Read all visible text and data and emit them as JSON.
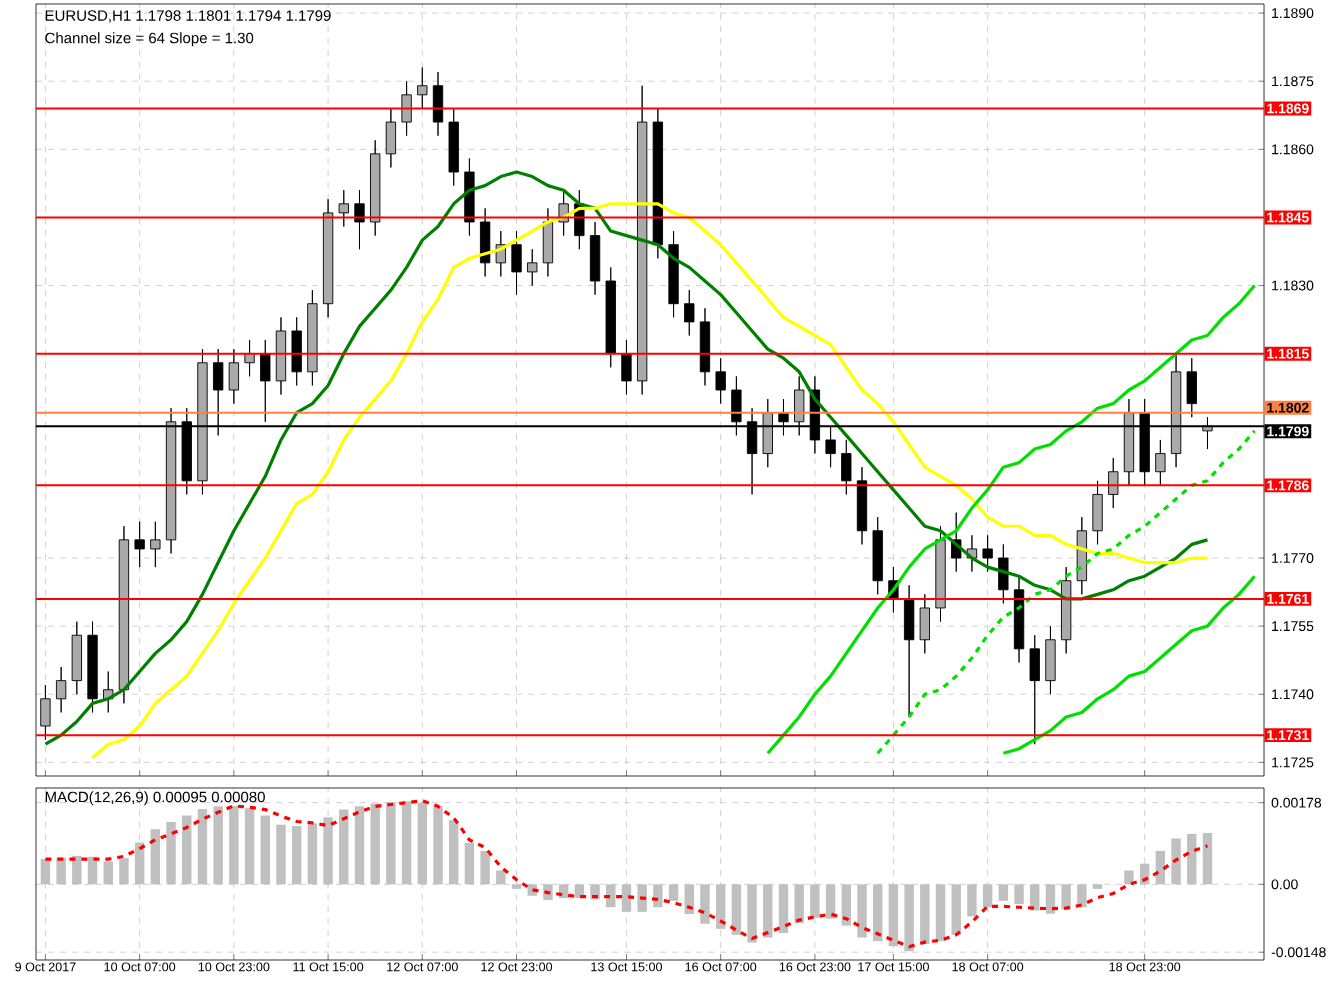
{
  "chart_data": [
    {
      "type": "candlestick",
      "title": "EURUSD,H1  1.1798 1.1801 1.1794 1.1799",
      "subtitle": "Channel size = 64 Slope = 1.30",
      "categories": [
        null,
        null,
        null,
        null,
        null,
        null,
        null,
        null,
        null,
        null,
        null,
        null,
        null,
        null,
        null,
        null,
        null,
        null,
        null,
        null,
        null,
        null,
        null,
        null,
        null,
        null,
        null,
        null,
        null,
        null,
        null,
        null,
        null,
        null,
        null,
        null,
        null,
        null,
        null,
        null,
        null,
        null,
        null,
        null,
        null,
        null,
        null,
        null,
        null,
        null,
        null,
        null,
        null,
        null,
        null,
        null,
        null,
        null,
        null,
        null,
        null,
        null,
        null,
        null,
        null,
        null,
        null,
        null,
        null,
        null,
        null,
        null,
        null,
        null,
        null,
        null,
        null,
        null
      ],
      "ohlc": [
        [
          1.1733,
          1.1742,
          1.173,
          1.1739
        ],
        [
          1.1739,
          1.1746,
          1.1736,
          1.1743
        ],
        [
          1.1743,
          1.1756,
          1.174,
          1.1753
        ],
        [
          1.1753,
          1.1756,
          1.1736,
          1.1739
        ],
        [
          1.1739,
          1.1745,
          1.1736,
          1.1741
        ],
        [
          1.1741,
          1.1777,
          1.1738,
          1.1774
        ],
        [
          1.1774,
          1.1778,
          1.1768,
          1.1772
        ],
        [
          1.1772,
          1.1778,
          1.1768,
          1.1774
        ],
        [
          1.1774,
          1.1803,
          1.1771,
          1.18
        ],
        [
          1.18,
          1.1803,
          1.1784,
          1.1787
        ],
        [
          1.1787,
          1.1816,
          1.1784,
          1.1813
        ],
        [
          1.1813,
          1.1816,
          1.1797,
          1.1807
        ],
        [
          1.1807,
          1.1816,
          1.1804,
          1.1813
        ],
        [
          1.1813,
          1.1818,
          1.181,
          1.1815
        ],
        [
          1.1815,
          1.1818,
          1.18,
          1.1809
        ],
        [
          1.1809,
          1.1823,
          1.1806,
          1.182
        ],
        [
          1.182,
          1.1823,
          1.1808,
          1.1811
        ],
        [
          1.1811,
          1.1829,
          1.1808,
          1.1826
        ],
        [
          1.1826,
          1.1849,
          1.1823,
          1.1846
        ],
        [
          1.1846,
          1.1851,
          1.1843,
          1.1848
        ],
        [
          1.1848,
          1.1851,
          1.1838,
          1.1844
        ],
        [
          1.1844,
          1.1862,
          1.1841,
          1.1859
        ],
        [
          1.1859,
          1.1869,
          1.1856,
          1.1866
        ],
        [
          1.1866,
          1.1875,
          1.1863,
          1.1872
        ],
        [
          1.1872,
          1.1878,
          1.1869,
          1.1874
        ],
        [
          1.1874,
          1.1877,
          1.1863,
          1.1866
        ],
        [
          1.1866,
          1.1869,
          1.1852,
          1.1855
        ],
        [
          1.1855,
          1.1858,
          1.1841,
          1.1844
        ],
        [
          1.1844,
          1.1847,
          1.1832,
          1.1835
        ],
        [
          1.1835,
          1.1842,
          1.1832,
          1.1839
        ],
        [
          1.1839,
          1.1842,
          1.1828,
          1.1833
        ],
        [
          1.1833,
          1.1838,
          1.183,
          1.1835
        ],
        [
          1.1835,
          1.1847,
          1.1832,
          1.1844
        ],
        [
          1.1844,
          1.1851,
          1.1841,
          1.1848
        ],
        [
          1.1848,
          1.1851,
          1.1838,
          1.1841
        ],
        [
          1.1841,
          1.1844,
          1.1828,
          1.1831
        ],
        [
          1.1831,
          1.1834,
          1.1812,
          1.1815
        ],
        [
          1.1815,
          1.1818,
          1.1806,
          1.1809
        ],
        [
          1.1809,
          1.1874,
          1.1806,
          1.1866
        ],
        [
          1.1866,
          1.1869,
          1.1836,
          1.1839
        ],
        [
          1.1839,
          1.1842,
          1.1823,
          1.1826
        ],
        [
          1.1826,
          1.1829,
          1.1819,
          1.1822
        ],
        [
          1.1822,
          1.1825,
          1.1808,
          1.1811
        ],
        [
          1.1811,
          1.1814,
          1.1804,
          1.1807
        ],
        [
          1.1807,
          1.181,
          1.1797,
          1.18
        ],
        [
          1.18,
          1.1803,
          1.1784,
          1.1793
        ],
        [
          1.1793,
          1.1805,
          1.179,
          1.1802
        ],
        [
          1.1802,
          1.1805,
          1.1797,
          1.18
        ],
        [
          1.18,
          1.181,
          1.1797,
          1.1807
        ],
        [
          1.1807,
          1.181,
          1.1793,
          1.1796
        ],
        [
          1.1796,
          1.1799,
          1.179,
          1.1793
        ],
        [
          1.1793,
          1.1796,
          1.1784,
          1.1787
        ],
        [
          1.1787,
          1.179,
          1.1773,
          1.1776
        ],
        [
          1.1776,
          1.1779,
          1.1762,
          1.1765
        ],
        [
          1.1765,
          1.1768,
          1.1758,
          1.1761
        ],
        [
          1.1761,
          1.1764,
          1.1735,
          1.1752
        ],
        [
          1.1752,
          1.1762,
          1.1749,
          1.1759
        ],
        [
          1.1759,
          1.1777,
          1.1756,
          1.1774
        ],
        [
          1.1774,
          1.178,
          1.1767,
          1.177
        ],
        [
          1.177,
          1.1775,
          1.1767,
          1.1772
        ],
        [
          1.1772,
          1.1775,
          1.1767,
          1.177
        ],
        [
          1.177,
          1.1773,
          1.176,
          1.1763
        ],
        [
          1.1763,
          1.1766,
          1.1747,
          1.175
        ],
        [
          1.175,
          1.1753,
          1.1729,
          1.1743
        ],
        [
          1.1743,
          1.1755,
          1.174,
          1.1752
        ],
        [
          1.1752,
          1.1768,
          1.1749,
          1.1765
        ],
        [
          1.1765,
          1.1779,
          1.1762,
          1.1776
        ],
        [
          1.1776,
          1.1787,
          1.1773,
          1.1784
        ],
        [
          1.1784,
          1.1792,
          1.1781,
          1.1789
        ],
        [
          1.1789,
          1.1805,
          1.1786,
          1.1802
        ],
        [
          1.1802,
          1.1805,
          1.1786,
          1.1789
        ],
        [
          1.1789,
          1.1796,
          1.1786,
          1.1793
        ],
        [
          1.1793,
          1.1815,
          1.179,
          1.1811
        ],
        [
          1.1811,
          1.1814,
          1.1801,
          1.1804
        ],
        [
          1.1798,
          1.1801,
          1.1794,
          1.1799
        ],
        null,
        null,
        null
      ],
      "series": [
        {
          "type": "line",
          "color": "#008000",
          "values": [
            1.1729,
            1.1731,
            1.1734,
            1.1738,
            1.1739,
            1.1741,
            1.1745,
            1.1749,
            1.1752,
            1.1756,
            1.1762,
            1.1769,
            1.1776,
            1.1782,
            1.1788,
            1.1796,
            1.1802,
            1.1804,
            1.1808,
            1.1815,
            1.1821,
            1.1825,
            1.1829,
            1.1834,
            1.184,
            1.1843,
            1.1848,
            1.1851,
            1.1852,
            1.1854,
            1.1855,
            1.1854,
            1.1852,
            1.1851,
            1.1848,
            1.1847,
            1.1842,
            1.1841,
            1.184,
            1.1839,
            1.1836,
            1.1834,
            1.1831,
            1.1828,
            1.1824,
            1.182,
            1.1816,
            1.1814,
            1.1811,
            1.1805,
            1.1801,
            1.1797,
            1.1793,
            1.1789,
            1.1785,
            1.1781,
            1.1777,
            1.1776,
            1.1773,
            1.177,
            1.1768,
            1.1767,
            1.1766,
            1.1764,
            1.1763,
            1.1761,
            1.1761,
            1.1762,
            1.1763,
            1.1765,
            1.1766,
            1.1768,
            1.177,
            1.1773,
            1.1774,
            null,
            null,
            null
          ]
        },
        {
          "type": "line",
          "color": "#ffff00",
          "values": [
            null,
            null,
            null,
            1.1726,
            1.1729,
            1.173,
            1.1733,
            1.1738,
            1.1741,
            1.1744,
            1.1749,
            1.1754,
            1.176,
            1.1765,
            1.177,
            1.1776,
            1.1782,
            1.1784,
            1.1789,
            1.1796,
            1.1801,
            1.1805,
            1.1809,
            1.1815,
            1.1822,
            1.1827,
            1.1834,
            1.1836,
            1.1837,
            1.1838,
            1.184,
            1.1842,
            1.1844,
            1.1845,
            1.1847,
            1.1847,
            1.1848,
            1.1848,
            1.1848,
            1.1848,
            1.1846,
            1.1845,
            1.1842,
            1.1839,
            1.1835,
            1.1831,
            1.1827,
            1.1823,
            1.1821,
            1.1819,
            1.1817,
            1.1812,
            1.1807,
            1.1804,
            1.18,
            1.1795,
            1.179,
            1.1788,
            1.1786,
            1.1783,
            1.1779,
            1.1777,
            1.1777,
            1.1775,
            1.1775,
            1.1773,
            1.1772,
            1.1771,
            1.1771,
            1.177,
            1.1769,
            1.1769,
            1.1769,
            1.177,
            1.177,
            null,
            null,
            null
          ]
        },
        {
          "type": "line",
          "color": "#00e000",
          "values": [
            null,
            null,
            null,
            null,
            null,
            null,
            null,
            null,
            null,
            null,
            null,
            null,
            null,
            null,
            null,
            null,
            null,
            null,
            null,
            null,
            null,
            null,
            null,
            null,
            null,
            null,
            null,
            null,
            null,
            null,
            null,
            null,
            null,
            null,
            null,
            null,
            null,
            null,
            null,
            null,
            null,
            null,
            null,
            null,
            null,
            null,
            1.1727,
            1.1731,
            1.1735,
            1.174,
            1.1744,
            1.1749,
            1.1754,
            1.1759,
            1.1763,
            1.1768,
            1.1772,
            1.1774,
            1.1776,
            1.1781,
            1.1785,
            1.179,
            1.1791,
            1.1794,
            1.1795,
            1.1798,
            1.18,
            1.1803,
            1.1804,
            1.1807,
            1.1809,
            1.1812,
            1.1815,
            1.1818,
            1.1819,
            1.1823,
            1.1826,
            1.183
          ]
        },
        {
          "type": "line",
          "color": "#00e000",
          "values": [
            null,
            null,
            null,
            null,
            null,
            null,
            null,
            null,
            null,
            null,
            null,
            null,
            null,
            null,
            null,
            null,
            null,
            null,
            null,
            null,
            null,
            null,
            null,
            null,
            null,
            null,
            null,
            null,
            null,
            null,
            null,
            null,
            null,
            null,
            null,
            null,
            null,
            null,
            null,
            null,
            null,
            null,
            null,
            null,
            null,
            null,
            null,
            null,
            null,
            null,
            null,
            null,
            null,
            null,
            null,
            null,
            null,
            null,
            null,
            null,
            null,
            1.1727,
            1.1728,
            1.173,
            1.1732,
            1.1735,
            1.1736,
            1.1739,
            1.1741,
            1.1744,
            1.1745,
            1.1748,
            1.1751,
            1.1754,
            1.1755,
            1.1759,
            1.1762,
            1.1766
          ]
        },
        {
          "type": "line",
          "color": "#00e000",
          "line_style": "dashed",
          "values": [
            null,
            null,
            null,
            null,
            null,
            null,
            null,
            null,
            null,
            null,
            null,
            null,
            null,
            null,
            null,
            null,
            null,
            null,
            null,
            null,
            null,
            null,
            null,
            null,
            null,
            null,
            null,
            null,
            null,
            null,
            null,
            null,
            null,
            null,
            null,
            null,
            null,
            null,
            null,
            null,
            null,
            null,
            null,
            null,
            null,
            null,
            null,
            null,
            null,
            null,
            null,
            null,
            null,
            1.1727,
            1.1731,
            1.1735,
            1.174,
            1.1741,
            1.1744,
            1.1748,
            1.1753,
            1.1757,
            1.1759,
            1.1762,
            1.1763,
            1.1766,
            1.1768,
            1.1771,
            1.1772,
            1.1775,
            1.1777,
            1.178,
            1.1783,
            1.1786,
            1.1787,
            1.1791,
            1.1794,
            1.1798
          ]
        }
      ],
      "ylim": [
        1.1722,
        1.1892
      ],
      "yticks": [
        {
          "value": 1.1725,
          "label": "1.1725"
        },
        {
          "value": 1.174,
          "label": "1.1740"
        },
        {
          "value": 1.1755,
          "label": "1.1755"
        },
        {
          "value": 1.177,
          "label": "1.1770"
        },
        {
          "value": 1.183,
          "label": "1.1830"
        },
        {
          "value": 1.186,
          "label": "1.1860"
        },
        {
          "value": 1.1875,
          "label": "1.1875"
        },
        {
          "value": 1.189,
          "label": "1.1890"
        }
      ],
      "ref_lines": [
        {
          "axis": "y",
          "value": 1.1869,
          "label": "1.1869",
          "color": "#ff0000"
        },
        {
          "axis": "y",
          "value": 1.1845,
          "label": "1.1845",
          "color": "#ff0000"
        },
        {
          "axis": "y",
          "value": 1.1815,
          "label": "1.1815",
          "color": "#ff0000"
        },
        {
          "axis": "y",
          "value": 1.1802,
          "label": "1.1802",
          "color": "#ff8040"
        },
        {
          "axis": "y",
          "value": 1.1799,
          "label": "1.1799",
          "color": "#000000"
        },
        {
          "axis": "y",
          "value": 1.1786,
          "label": "1.1786",
          "color": "#ff0000"
        },
        {
          "axis": "y",
          "value": 1.1761,
          "label": "1.1761",
          "color": "#ff0000"
        },
        {
          "axis": "y",
          "value": 1.1731,
          "label": "1.1731",
          "color": "#ff0000"
        }
      ],
      "grid": true,
      "tick_labels": "y"
    },
    {
      "type": "bar",
      "title": "MACD(12,26,9) 0.00095 0.00080",
      "categories": [
        "9 Oct 2017",
        null,
        null,
        null,
        null,
        null,
        "10 Oct 07:00",
        null,
        null,
        null,
        null,
        null,
        "10 Oct 23:00",
        null,
        null,
        null,
        null,
        null,
        "11 Oct 15:00",
        null,
        null,
        null,
        null,
        null,
        "12 Oct 07:00",
        null,
        null,
        null,
        null,
        null,
        "12 Oct 23:00",
        null,
        null,
        null,
        null,
        null,
        null,
        "13 Oct 15:00",
        null,
        null,
        null,
        null,
        null,
        "16 Oct 07:00",
        null,
        null,
        null,
        null,
        null,
        "16 Oct 23:00",
        null,
        null,
        null,
        null,
        "17 Oct 15:00",
        null,
        null,
        null,
        null,
        null,
        "18 Oct 07:00",
        null,
        null,
        null,
        null,
        null,
        null,
        null,
        null,
        null,
        "18 Oct 23:00",
        null,
        null,
        null,
        null,
        null,
        null,
        null
      ],
      "series": [
        {
          "type": "bar",
          "color": "#c0c0c0",
          "values": [
            0.00055,
            0.00058,
            0.00062,
            0.0006,
            0.0005,
            0.00057,
            0.00091,
            0.0012,
            0.00136,
            0.0015,
            0.00164,
            0.0017,
            0.00171,
            0.00166,
            0.0015,
            0.0013,
            0.00127,
            0.00133,
            0.00146,
            0.00163,
            0.0017,
            0.00176,
            0.00179,
            0.00181,
            0.00178,
            0.0017,
            0.0014,
            0.0009,
            0.00073,
            0.0003,
            -0.0001,
            -0.00025,
            -0.00034,
            -0.0003,
            -0.0003,
            -0.00033,
            -0.0005,
            -0.0006,
            -0.0006,
            -0.0005,
            -0.00036,
            -0.00065,
            -0.00086,
            -0.00097,
            -0.0011,
            -0.00127,
            -0.00116,
            -0.00106,
            -0.00085,
            -0.00073,
            -0.00075,
            -0.0009,
            -0.00116,
            -0.00124,
            -0.00135,
            -0.00146,
            -0.0013,
            -0.00124,
            -0.0011,
            -0.0007,
            -0.0005,
            -0.00036,
            -0.00043,
            -0.00057,
            -0.00064,
            -0.00055,
            -0.0005,
            -0.0001,
            0.0,
            0.0003,
            0.00045,
            0.00073,
            0.001,
            0.0011,
            0.00112,
            null,
            null,
            null
          ]
        },
        {
          "type": "line",
          "color": "#ff0000",
          "line_style": "dashed",
          "values": [
            0.00055,
            0.00055,
            0.00055,
            0.00055,
            0.00055,
            0.00061,
            0.00078,
            0.00097,
            0.0011,
            0.00124,
            0.00142,
            0.00157,
            0.00171,
            0.00168,
            0.00163,
            0.00149,
            0.00137,
            0.00134,
            0.00128,
            0.00143,
            0.00158,
            0.0017,
            0.00174,
            0.00178,
            0.00182,
            0.0017,
            0.00145,
            0.00097,
            0.0008,
            0.00038,
            0.0001,
            -0.00012,
            -0.00018,
            -0.00023,
            -0.00027,
            -0.00027,
            -0.00027,
            -0.00027,
            -0.0003,
            -0.00033,
            -0.0004,
            -0.0005,
            -0.00062,
            -0.0008,
            -0.001,
            -0.00118,
            -0.00105,
            -0.00092,
            -0.00078,
            -0.00071,
            -0.00065,
            -0.00075,
            -0.00094,
            -0.00108,
            -0.00122,
            -0.00136,
            -0.00126,
            -0.00122,
            -0.0011,
            -0.00082,
            -0.00048,
            -0.00048,
            -0.0005,
            -0.00052,
            -0.00053,
            -0.00052,
            -0.00045,
            -0.00029,
            -0.0002,
            0.0,
            0.0001,
            0.00029,
            0.00053,
            0.00072,
            0.00084,
            null,
            null,
            null
          ]
        }
      ],
      "ylim": [
        -0.00165,
        0.0021
      ],
      "yticks": [
        {
          "value": -0.00148,
          "label": "-0.00148"
        },
        {
          "value": 0,
          "label": "0.00"
        },
        {
          "value": 0.00178,
          "label": "0.00178"
        }
      ],
      "grid": true
    }
  ]
}
